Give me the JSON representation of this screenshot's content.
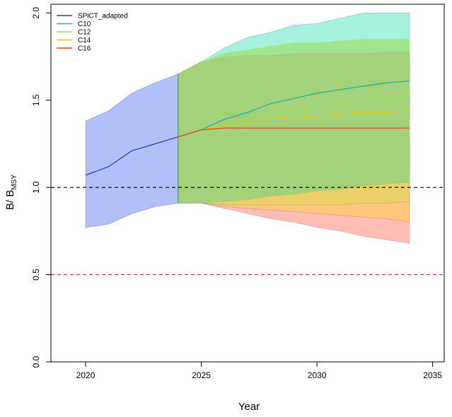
{
  "chart_data": {
    "type": "area",
    "xlabel": "Year",
    "ylabel": {
      "main": "B/ B",
      "subscript": "MSY"
    },
    "xlim": [
      2018.5,
      2035.5
    ],
    "ylim": [
      0,
      2.05
    ],
    "x_ticks": [
      {
        "value": 2020,
        "label": "2020"
      },
      {
        "value": 2025,
        "label": "2025"
      },
      {
        "value": 2030,
        "label": "2030"
      },
      {
        "value": 2035,
        "label": "2035"
      }
    ],
    "y_ticks": [
      {
        "value": 0.0,
        "label": "0.0"
      },
      {
        "value": 0.5,
        "label": "0.5"
      },
      {
        "value": 1.0,
        "label": "1.0"
      },
      {
        "value": 1.5,
        "label": "1.5"
      },
      {
        "value": 2.0,
        "label": "2.0"
      }
    ],
    "legend": {
      "position": "top-left",
      "entries": [
        {
          "label": "SPiCT_adapted",
          "color": "#1f3fbf"
        },
        {
          "label": "C10",
          "color": "#17b4a4"
        },
        {
          "label": "C12",
          "color": "#9ee04a"
        },
        {
          "label": "C14",
          "color": "#e6c417"
        },
        {
          "label": "C16",
          "color": "#e6391d"
        }
      ]
    },
    "reference_lines": [
      {
        "y": 1.0,
        "color": "#000000",
        "style": "dashed"
      },
      {
        "y": 0.5,
        "color": "#c0392b",
        "style": "dashed"
      }
    ],
    "historical": {
      "name": "SPiCT_adapted",
      "x": [
        2020,
        2021,
        2022,
        2023,
        2024
      ],
      "mean": [
        1.07,
        1.12,
        1.21,
        1.25,
        1.29
      ],
      "lower": [
        0.77,
        0.79,
        0.85,
        0.89,
        0.91
      ],
      "upper": [
        1.38,
        1.44,
        1.54,
        1.6,
        1.65
      ],
      "line_color": "#1f3fbf",
      "fill_color": "#b3c0f7"
    },
    "projections": [
      {
        "name": "C16",
        "line_color": "#e6391d",
        "fill_color": "#ffbdb3",
        "x": [
          2024,
          2025,
          2026,
          2027,
          2028,
          2029,
          2030,
          2031,
          2032,
          2033,
          2034
        ],
        "mean": [
          1.29,
          1.33,
          1.34,
          1.34,
          1.34,
          1.34,
          1.34,
          1.34,
          1.34,
          1.34,
          1.34
        ],
        "lower": [
          0.91,
          0.91,
          0.88,
          0.85,
          0.82,
          0.8,
          0.77,
          0.75,
          0.72,
          0.7,
          0.68
        ],
        "upper": [
          1.65,
          1.72,
          1.75,
          1.76,
          1.76,
          1.77,
          1.77,
          1.77,
          1.77,
          1.78,
          1.78
        ]
      },
      {
        "name": "C14",
        "line_color": "#e6c417",
        "fill_color": "#fbc87a",
        "x": [
          2024,
          2025,
          2026,
          2027,
          2028,
          2029,
          2030,
          2031,
          2032,
          2033,
          2034
        ],
        "mean": [
          1.29,
          1.33,
          1.35,
          1.37,
          1.39,
          1.4,
          1.41,
          1.42,
          1.43,
          1.43,
          1.44
        ],
        "lower": [
          0.91,
          0.91,
          0.89,
          0.88,
          0.87,
          0.86,
          0.85,
          0.84,
          0.83,
          0.82,
          0.8
        ],
        "upper": [
          1.65,
          1.72,
          1.75,
          1.76,
          1.76,
          1.77,
          1.77,
          1.77,
          1.77,
          1.78,
          1.78
        ]
      },
      {
        "name": "C12",
        "line_color": "#9ee04a",
        "fill_color": "#ebd065",
        "x": [
          2024,
          2025,
          2026,
          2027,
          2028,
          2029,
          2030,
          2031,
          2032,
          2033,
          2034
        ],
        "mean": [
          1.29,
          1.33,
          1.36,
          1.39,
          1.42,
          1.44,
          1.46,
          1.48,
          1.5,
          1.51,
          1.53
        ],
        "lower": [
          0.91,
          0.91,
          0.9,
          0.9,
          0.9,
          0.9,
          0.9,
          0.9,
          0.91,
          0.91,
          0.92
        ],
        "upper": [
          1.65,
          1.72,
          1.77,
          1.79,
          1.81,
          1.83,
          1.83,
          1.84,
          1.85,
          1.85,
          1.85
        ]
      },
      {
        "name": "C10",
        "line_color": "#17b4a4",
        "fill_color": "#a6f0de",
        "x": [
          2024,
          2025,
          2026,
          2027,
          2028,
          2029,
          2030,
          2031,
          2032,
          2033,
          2034
        ],
        "mean": [
          1.29,
          1.33,
          1.39,
          1.43,
          1.48,
          1.51,
          1.54,
          1.56,
          1.58,
          1.6,
          1.61
        ],
        "lower": [
          0.91,
          0.91,
          0.92,
          0.93,
          0.95,
          0.96,
          0.98,
          0.99,
          1.01,
          1.02,
          1.03
        ],
        "upper": [
          1.65,
          1.72,
          1.8,
          1.86,
          1.89,
          1.93,
          1.94,
          1.97,
          2.0,
          2.0,
          2.0
        ]
      }
    ],
    "overlap_fill_color": "#a3d17a",
    "c12_band_fill_color": "#9fe68f"
  }
}
